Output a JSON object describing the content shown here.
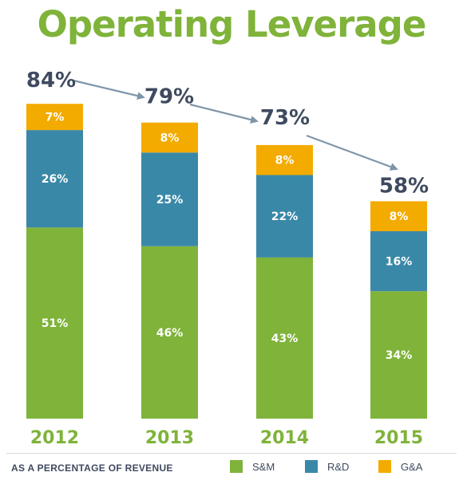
{
  "title": "Operating Leverage",
  "footer_note": "AS A PERCENTAGE OF REVENUE",
  "colors": {
    "title": "#7fb33a",
    "total_text": "#3f4a5f",
    "arrow": "#7f95a8"
  },
  "chart_data": {
    "type": "bar",
    "stacked": true,
    "categories": [
      "2012",
      "2013",
      "2014",
      "2015"
    ],
    "series": [
      {
        "name": "S&M",
        "values": [
          51,
          46,
          43,
          34
        ],
        "labels": [
          "51%",
          "46%",
          "43%",
          "34%"
        ],
        "color": "#7fb33a"
      },
      {
        "name": "R&D",
        "values": [
          26,
          25,
          22,
          16
        ],
        "labels": [
          "26%",
          "25%",
          "22%",
          "16%"
        ],
        "color": "#3a88a8"
      },
      {
        "name": "G&A",
        "values": [
          7,
          8,
          8,
          8
        ],
        "labels": [
          "7%",
          "8%",
          "8%",
          "8%"
        ],
        "color": "#f3ab00"
      }
    ],
    "totals": [
      "84%",
      "79%",
      "73%",
      "58%"
    ],
    "title": "Operating Leverage",
    "ylim": [
      0,
      84
    ],
    "legend_position": "bottom-right",
    "grid": false
  }
}
